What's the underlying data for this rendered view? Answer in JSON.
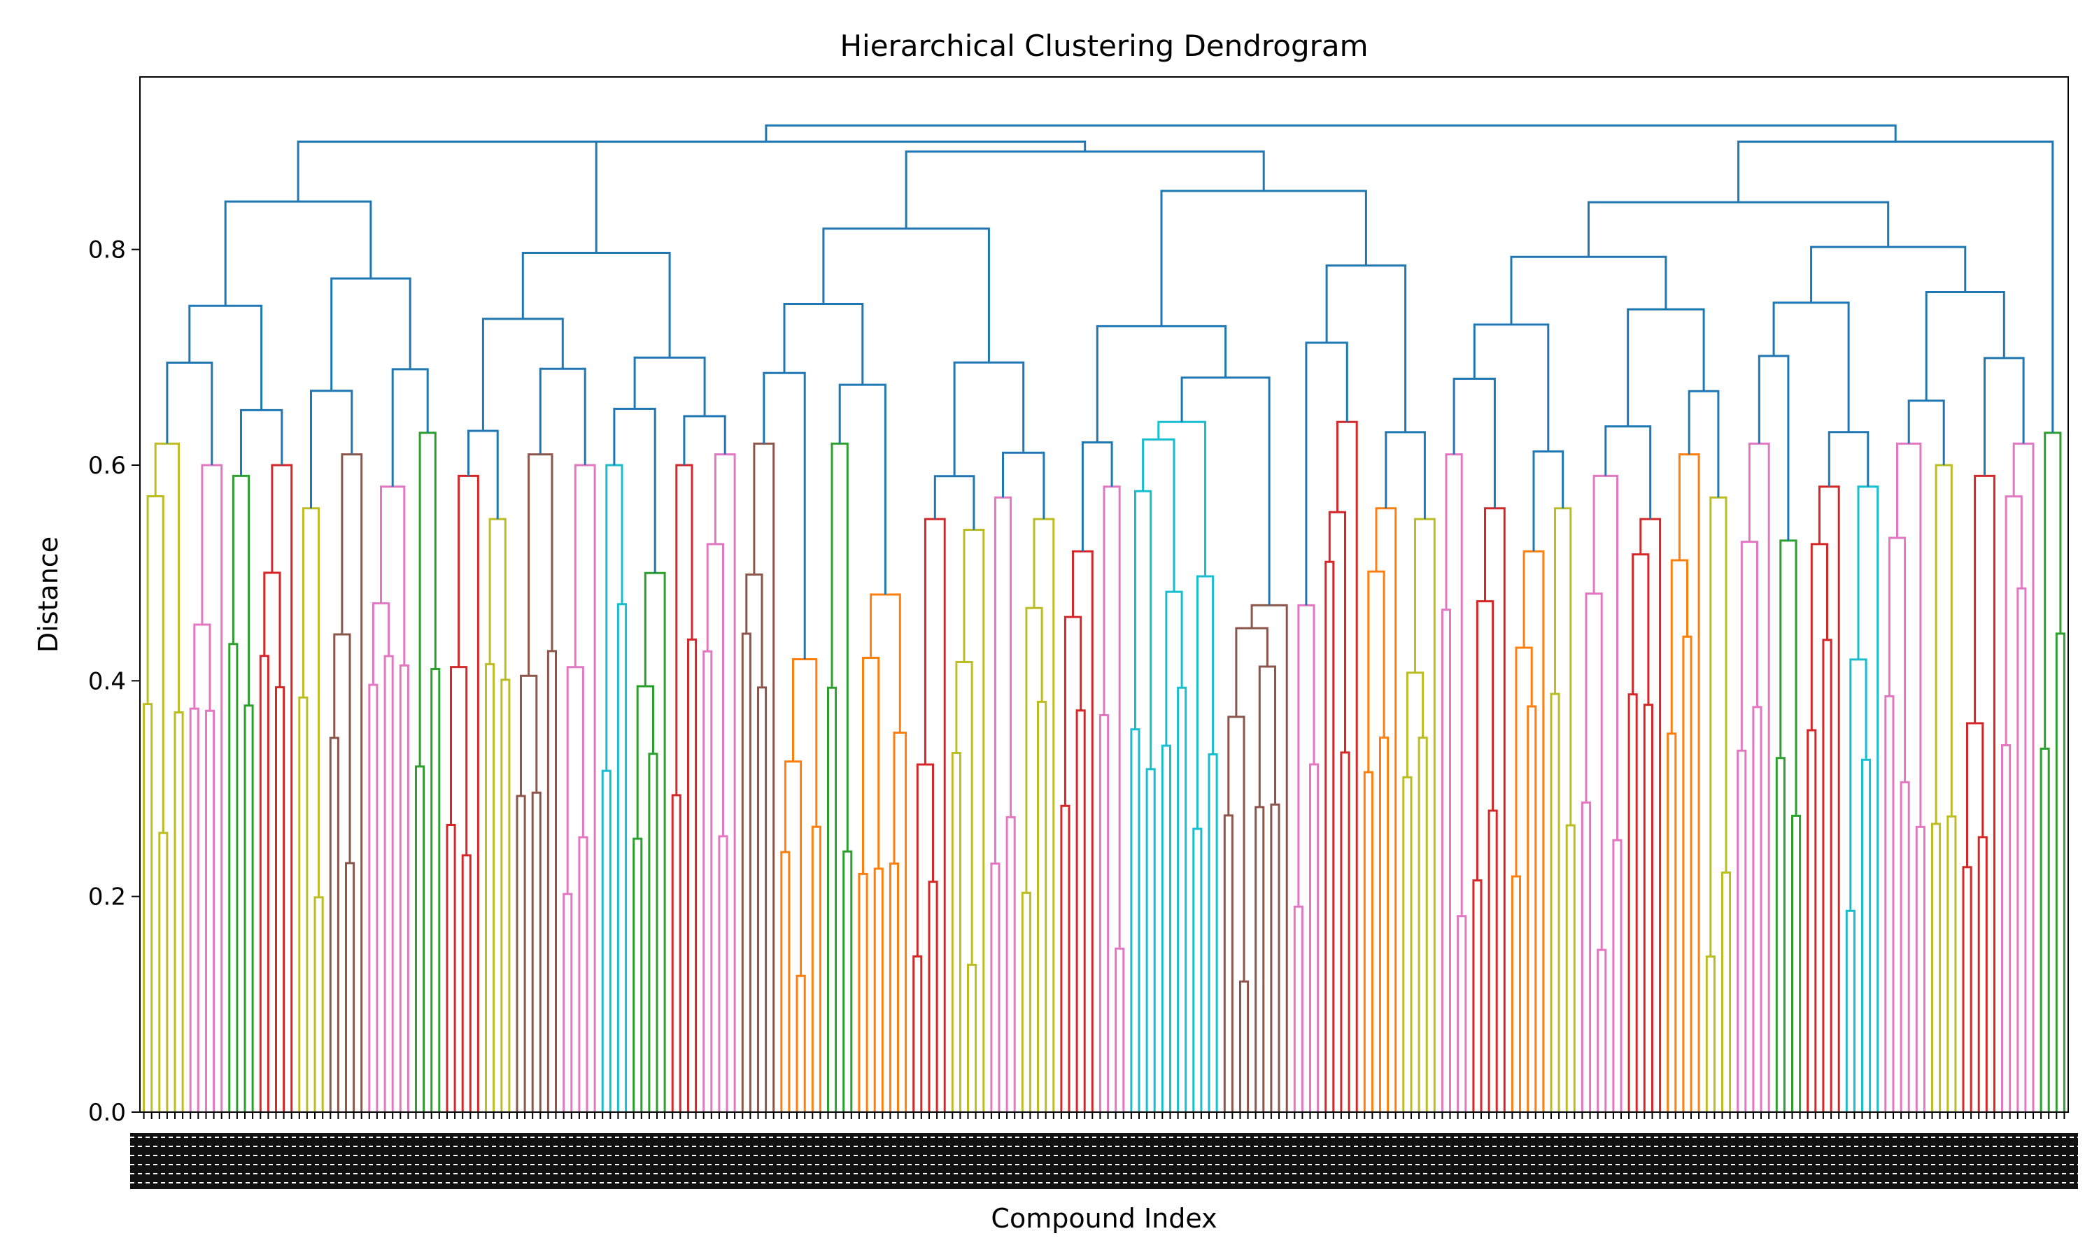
{
  "chart_data": {
    "type": "dendrogram",
    "title": "Hierarchical Clustering Dendrogram",
    "xlabel": "Compound Index",
    "ylabel": "Distance",
    "ylim": [
      0,
      0.96
    ],
    "yticks": [
      "0.0",
      "0.2",
      "0.4",
      "0.6",
      "0.8"
    ],
    "ytick_values": [
      0.0,
      0.2,
      0.4,
      0.6,
      0.8
    ],
    "grid": false,
    "leaf_count": 360,
    "root_height": 0.915,
    "above_threshold_color": "#1f77b4",
    "cluster_palette": [
      "#ff7f0e",
      "#2ca02c",
      "#d62728",
      "#9467bd",
      "#8c564b",
      "#e377c2",
      "#bcbd22",
      "#17becf"
    ],
    "clusters": [
      {
        "color": "#bcbd22",
        "leaves": 6,
        "height": 0.62
      },
      {
        "color": "#e377c2",
        "leaves": 5,
        "height": 0.6
      },
      {
        "color": "#2ca02c",
        "leaves": 4,
        "height": 0.59
      },
      {
        "color": "#d62728",
        "leaves": 5,
        "height": 0.6
      },
      {
        "color": "#bcbd22",
        "leaves": 4,
        "height": 0.56
      },
      {
        "color": "#8c564b",
        "leaves": 5,
        "height": 0.61
      },
      {
        "color": "#e377c2",
        "leaves": 6,
        "height": 0.58
      },
      {
        "color": "#2ca02c",
        "leaves": 4,
        "height": 0.63
      },
      {
        "color": "#d62728",
        "leaves": 5,
        "height": 0.59
      },
      {
        "color": "#bcbd22",
        "leaves": 4,
        "height": 0.55
      },
      {
        "color": "#8c564b",
        "leaves": 6,
        "height": 0.61
      },
      {
        "color": "#e377c2",
        "leaves": 5,
        "height": 0.6
      },
      {
        "color": "#17becf",
        "leaves": 4,
        "height": 0.6
      },
      {
        "color": "#2ca02c",
        "leaves": 5,
        "height": 0.5
      },
      {
        "color": "#d62728",
        "leaves": 4,
        "height": 0.6
      },
      {
        "color": "#e377c2",
        "leaves": 5,
        "height": 0.61
      },
      {
        "color": "#8c564b",
        "leaves": 5,
        "height": 0.62
      },
      {
        "color": "#ff7f0e",
        "leaves": 6,
        "height": 0.42
      },
      {
        "color": "#2ca02c",
        "leaves": 4,
        "height": 0.62
      },
      {
        "color": "#ff7f0e",
        "leaves": 7,
        "height": 0.48
      },
      {
        "color": "#d62728",
        "leaves": 5,
        "height": 0.55
      },
      {
        "color": "#bcbd22",
        "leaves": 5,
        "height": 0.54
      },
      {
        "color": "#e377c2",
        "leaves": 4,
        "height": 0.57
      },
      {
        "color": "#bcbd22",
        "leaves": 5,
        "height": 0.55
      },
      {
        "color": "#d62728",
        "leaves": 5,
        "height": 0.52
      },
      {
        "color": "#e377c2",
        "leaves": 4,
        "height": 0.58
      },
      {
        "color": "#17becf",
        "leaves": 12,
        "height": 0.64
      },
      {
        "color": "#8c564b",
        "leaves": 9,
        "height": 0.47
      },
      {
        "color": "#e377c2",
        "leaves": 4,
        "height": 0.47
      },
      {
        "color": "#d62728",
        "leaves": 5,
        "height": 0.64
      },
      {
        "color": "#ff7f0e",
        "leaves": 5,
        "height": 0.56
      },
      {
        "color": "#bcbd22",
        "leaves": 5,
        "height": 0.55
      },
      {
        "color": "#e377c2",
        "leaves": 4,
        "height": 0.61
      },
      {
        "color": "#d62728",
        "leaves": 5,
        "height": 0.56
      },
      {
        "color": "#ff7f0e",
        "leaves": 5,
        "height": 0.52
      },
      {
        "color": "#bcbd22",
        "leaves": 4,
        "height": 0.56
      },
      {
        "color": "#e377c2",
        "leaves": 6,
        "height": 0.59
      },
      {
        "color": "#d62728",
        "leaves": 5,
        "height": 0.55
      },
      {
        "color": "#ff7f0e",
        "leaves": 5,
        "height": 0.61
      },
      {
        "color": "#bcbd22",
        "leaves": 4,
        "height": 0.57
      },
      {
        "color": "#e377c2",
        "leaves": 5,
        "height": 0.62
      },
      {
        "color": "#2ca02c",
        "leaves": 4,
        "height": 0.53
      },
      {
        "color": "#d62728",
        "leaves": 5,
        "height": 0.58
      },
      {
        "color": "#17becf",
        "leaves": 5,
        "height": 0.58
      },
      {
        "color": "#e377c2",
        "leaves": 6,
        "height": 0.62
      },
      {
        "color": "#bcbd22",
        "leaves": 4,
        "height": 0.6
      },
      {
        "color": "#d62728",
        "leaves": 5,
        "height": 0.59
      },
      {
        "color": "#e377c2",
        "leaves": 5,
        "height": 0.62
      },
      {
        "color": "#2ca02c",
        "leaves": 4,
        "height": 0.63
      }
    ]
  }
}
